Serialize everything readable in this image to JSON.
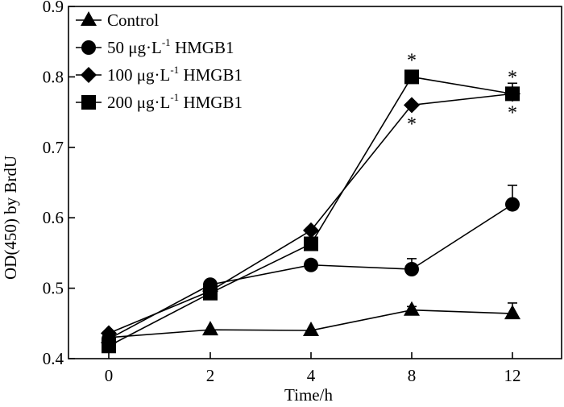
{
  "chart_data": {
    "type": "line",
    "title": "",
    "xlabel": "Time/h",
    "ylabel": "OD(450) by BrdU",
    "categories": [
      "0",
      "2",
      "4",
      "8",
      "12"
    ],
    "ylim": [
      0.4,
      0.9
    ],
    "yticks": [
      0.4,
      0.5,
      0.6,
      0.7,
      0.8,
      0.9
    ],
    "y_tick_labels": [
      "0.4",
      "0.5",
      "0.6",
      "0.7",
      "0.8",
      "0.9"
    ],
    "legend_position": "top-left",
    "series": [
      {
        "name": "Control",
        "legend_main": "Control",
        "legend_sup": "",
        "legend_tail": "",
        "marker": "triangle",
        "values": [
          0.43,
          0.441,
          0.44,
          0.469,
          0.464
        ],
        "errors": [
          0.0,
          0.0,
          0.0,
          0.005,
          0.015
        ],
        "sig": [
          null,
          null,
          null,
          null,
          null
        ]
      },
      {
        "name": "50 μg·L-1 HMGB1",
        "legend_main": "50 μg·L",
        "legend_sup": "-1",
        "legend_tail": " HMGB1",
        "marker": "circle",
        "values": [
          0.428,
          0.505,
          0.533,
          0.527,
          0.619
        ],
        "errors": [
          0.0,
          0.0,
          0.0,
          0.015,
          0.027
        ],
        "sig": [
          null,
          null,
          null,
          null,
          null
        ]
      },
      {
        "name": "100 μg·L-1 HMGB1",
        "legend_main": "100 μg·L",
        "legend_sup": "-1",
        "legend_tail": " HMGB1",
        "marker": "diamond",
        "values": [
          0.436,
          0.496,
          0.582,
          0.76,
          0.776
        ],
        "errors": [
          0.0,
          0.0,
          0.0,
          0.0,
          0.0
        ],
        "sig": [
          null,
          null,
          null,
          "*",
          "*"
        ],
        "sig_pos": [
          null,
          null,
          null,
          "below",
          "below"
        ]
      },
      {
        "name": "200 μg·L-1 HMGB1",
        "legend_main": "200 μg·L",
        "legend_sup": "-1",
        "legend_tail": " HMGB1",
        "marker": "square",
        "values": [
          0.418,
          0.493,
          0.563,
          0.8,
          0.776
        ],
        "errors": [
          0.0,
          0.0,
          0.0,
          0.0,
          0.015
        ],
        "sig": [
          null,
          null,
          null,
          "*",
          "*"
        ],
        "sig_pos": [
          null,
          null,
          null,
          "above",
          "above"
        ]
      }
    ]
  }
}
